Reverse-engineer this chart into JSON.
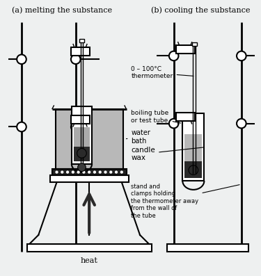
{
  "title_a": "(a) melting the substance",
  "title_b": "(b) cooling the substance",
  "bg_color": "#eef0f0",
  "label_thermometer": "0 – 100°C\nthermometer",
  "label_boiling": "boiling tube\nor test tube",
  "label_candle": "candle\nwax",
  "label_water": "water\nbath",
  "label_heat": "heat",
  "label_stand": "stand and\nclamps holding\nthe thermometer away\nfrom the wall of\nthe tube"
}
